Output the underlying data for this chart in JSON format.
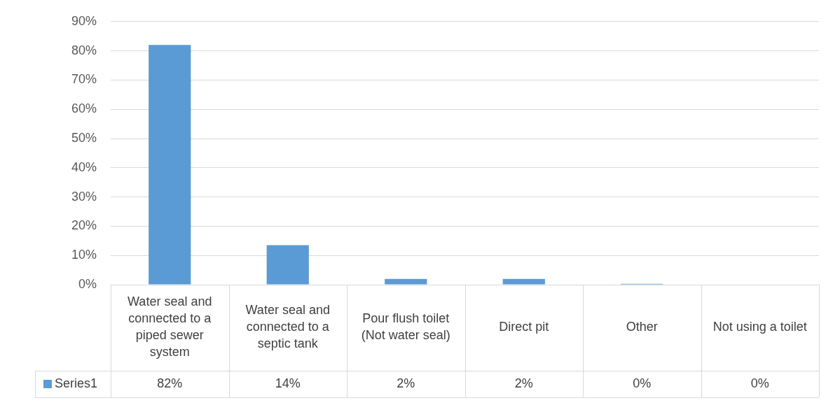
{
  "chart_data": {
    "type": "bar",
    "categories": [
      "Water seal and connected to a piped sewer system",
      "Water seal and connected to a septic tank",
      "Pour flush toilet (Not water seal)",
      "Direct pit",
      "Other",
      "Not using a toilet"
    ],
    "series": [
      {
        "name": "Series1",
        "color": "#5b9bd5",
        "values": [
          82,
          13.5,
          2,
          2,
          0.3,
          0
        ],
        "value_labels": [
          "82%",
          "14%",
          "2%",
          "2%",
          "0%",
          "0%"
        ]
      }
    ],
    "ylim": [
      0,
      90
    ],
    "yticks": [
      {
        "value": 0,
        "label": "0%"
      },
      {
        "value": 10,
        "label": "10%"
      },
      {
        "value": 20,
        "label": "20%"
      },
      {
        "value": 30,
        "label": "30%"
      },
      {
        "value": 40,
        "label": "40%"
      },
      {
        "value": 50,
        "label": "50%"
      },
      {
        "value": 60,
        "label": "60%"
      },
      {
        "value": 70,
        "label": "70%"
      },
      {
        "value": 80,
        "label": "80%"
      },
      {
        "value": 90,
        "label": "90%"
      }
    ],
    "grid": "y",
    "legend": "bottom"
  }
}
